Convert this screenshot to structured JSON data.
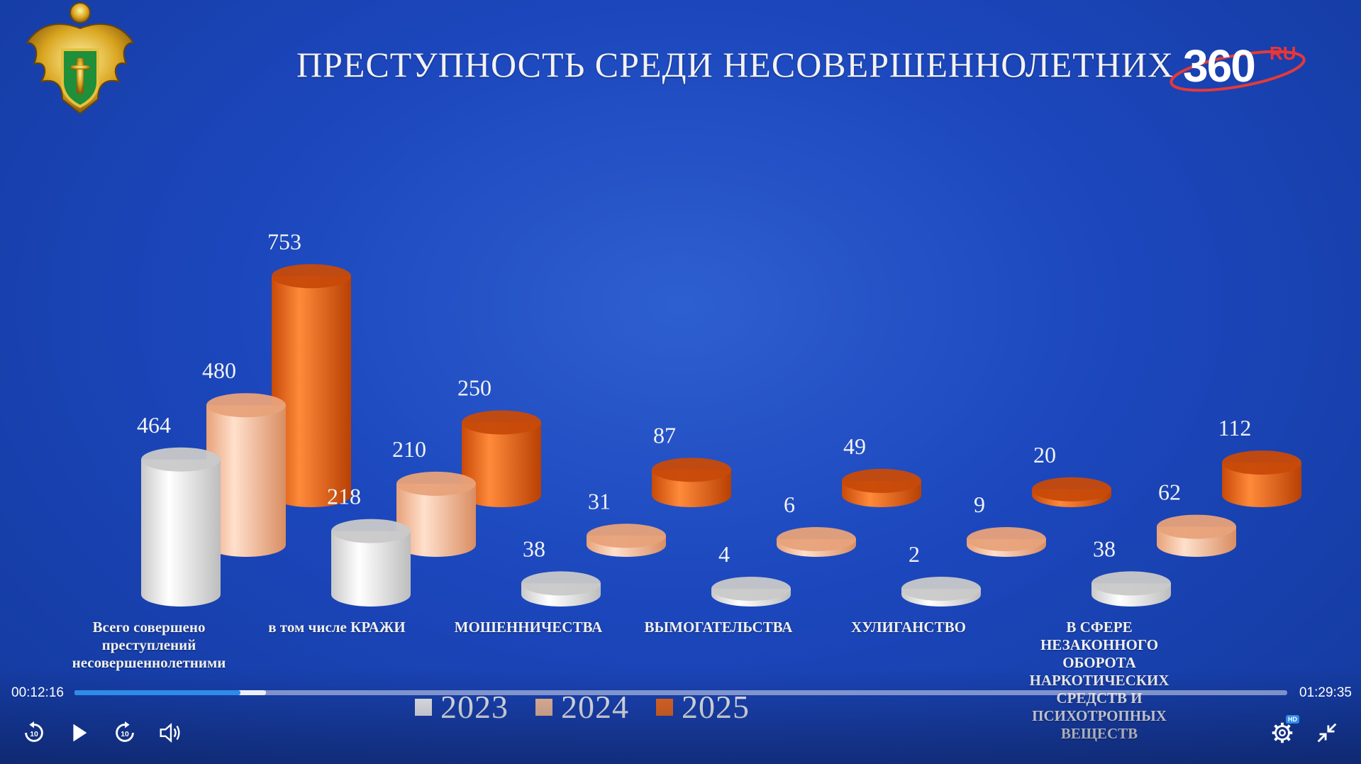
{
  "slide": {
    "title": "ПРЕСТУПНОСТЬ СРЕДИ НЕСОВЕРШЕННОЛЕТНИХ",
    "logo_text": "360",
    "logo_suffix": "RU",
    "emblem_icon": "double-headed-eagle-emblem"
  },
  "chart_data": {
    "type": "bar",
    "title": "ПРЕСТУПНОСТЬ СРЕДИ НЕСОВЕРШЕННОЛЕТНИХ",
    "categories": [
      "Всего совершено преступлений несовершеннолетними",
      "в том числе КРАЖИ",
      "МОШЕННИЧЕСТВА",
      "ВЫМОГАТЕЛЬСТВА",
      "ХУЛИГАНСТВО",
      "В СФЕРЕ НЕЗАКОННОГО ОБОРОТА НАРКОТИЧЕСКИХ СРЕДСТВ И ПСИХОТРОПНЫХ ВЕЩЕСТВ"
    ],
    "series": [
      {
        "name": "2023",
        "color": "#f4f4f4",
        "values": [
          464,
          218,
          38,
          4,
          2,
          38
        ]
      },
      {
        "name": "2024",
        "color": "#f6c09c",
        "values": [
          480,
          210,
          31,
          6,
          9,
          62
        ]
      },
      {
        "name": "2025",
        "color": "#f06a1c",
        "values": [
          753,
          250,
          87,
          49,
          20,
          112
        ]
      }
    ],
    "legend_position": "bottom"
  },
  "player": {
    "current_time": "00:12:16",
    "duration": "01:29:35",
    "progress": 0.137,
    "buffered": 0.158,
    "hd_badge": "HD"
  }
}
